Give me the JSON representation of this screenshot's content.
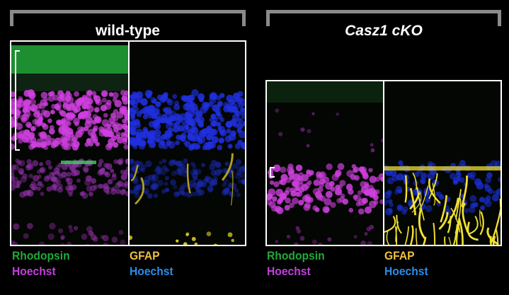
{
  "groups": [
    {
      "title": "wild-type",
      "labels": {
        "left": [
          "Rhodopsin",
          "Hoechst"
        ],
        "right": [
          "GFAP",
          "Hoechst"
        ]
      }
    },
    {
      "title": "Casz1 cKO",
      "labels": {
        "left": [
          "Rhodopsin",
          "Hoechst"
        ],
        "right": [
          "GFAP",
          "Hoechst"
        ]
      }
    }
  ],
  "colors": {
    "rhodopsin": "#22a83a",
    "hoechst_magenta": "#c040d8",
    "gfap": "#f0c040",
    "hoechst_blue": "#2a8ce8",
    "bracket": "#8a8a8a"
  }
}
